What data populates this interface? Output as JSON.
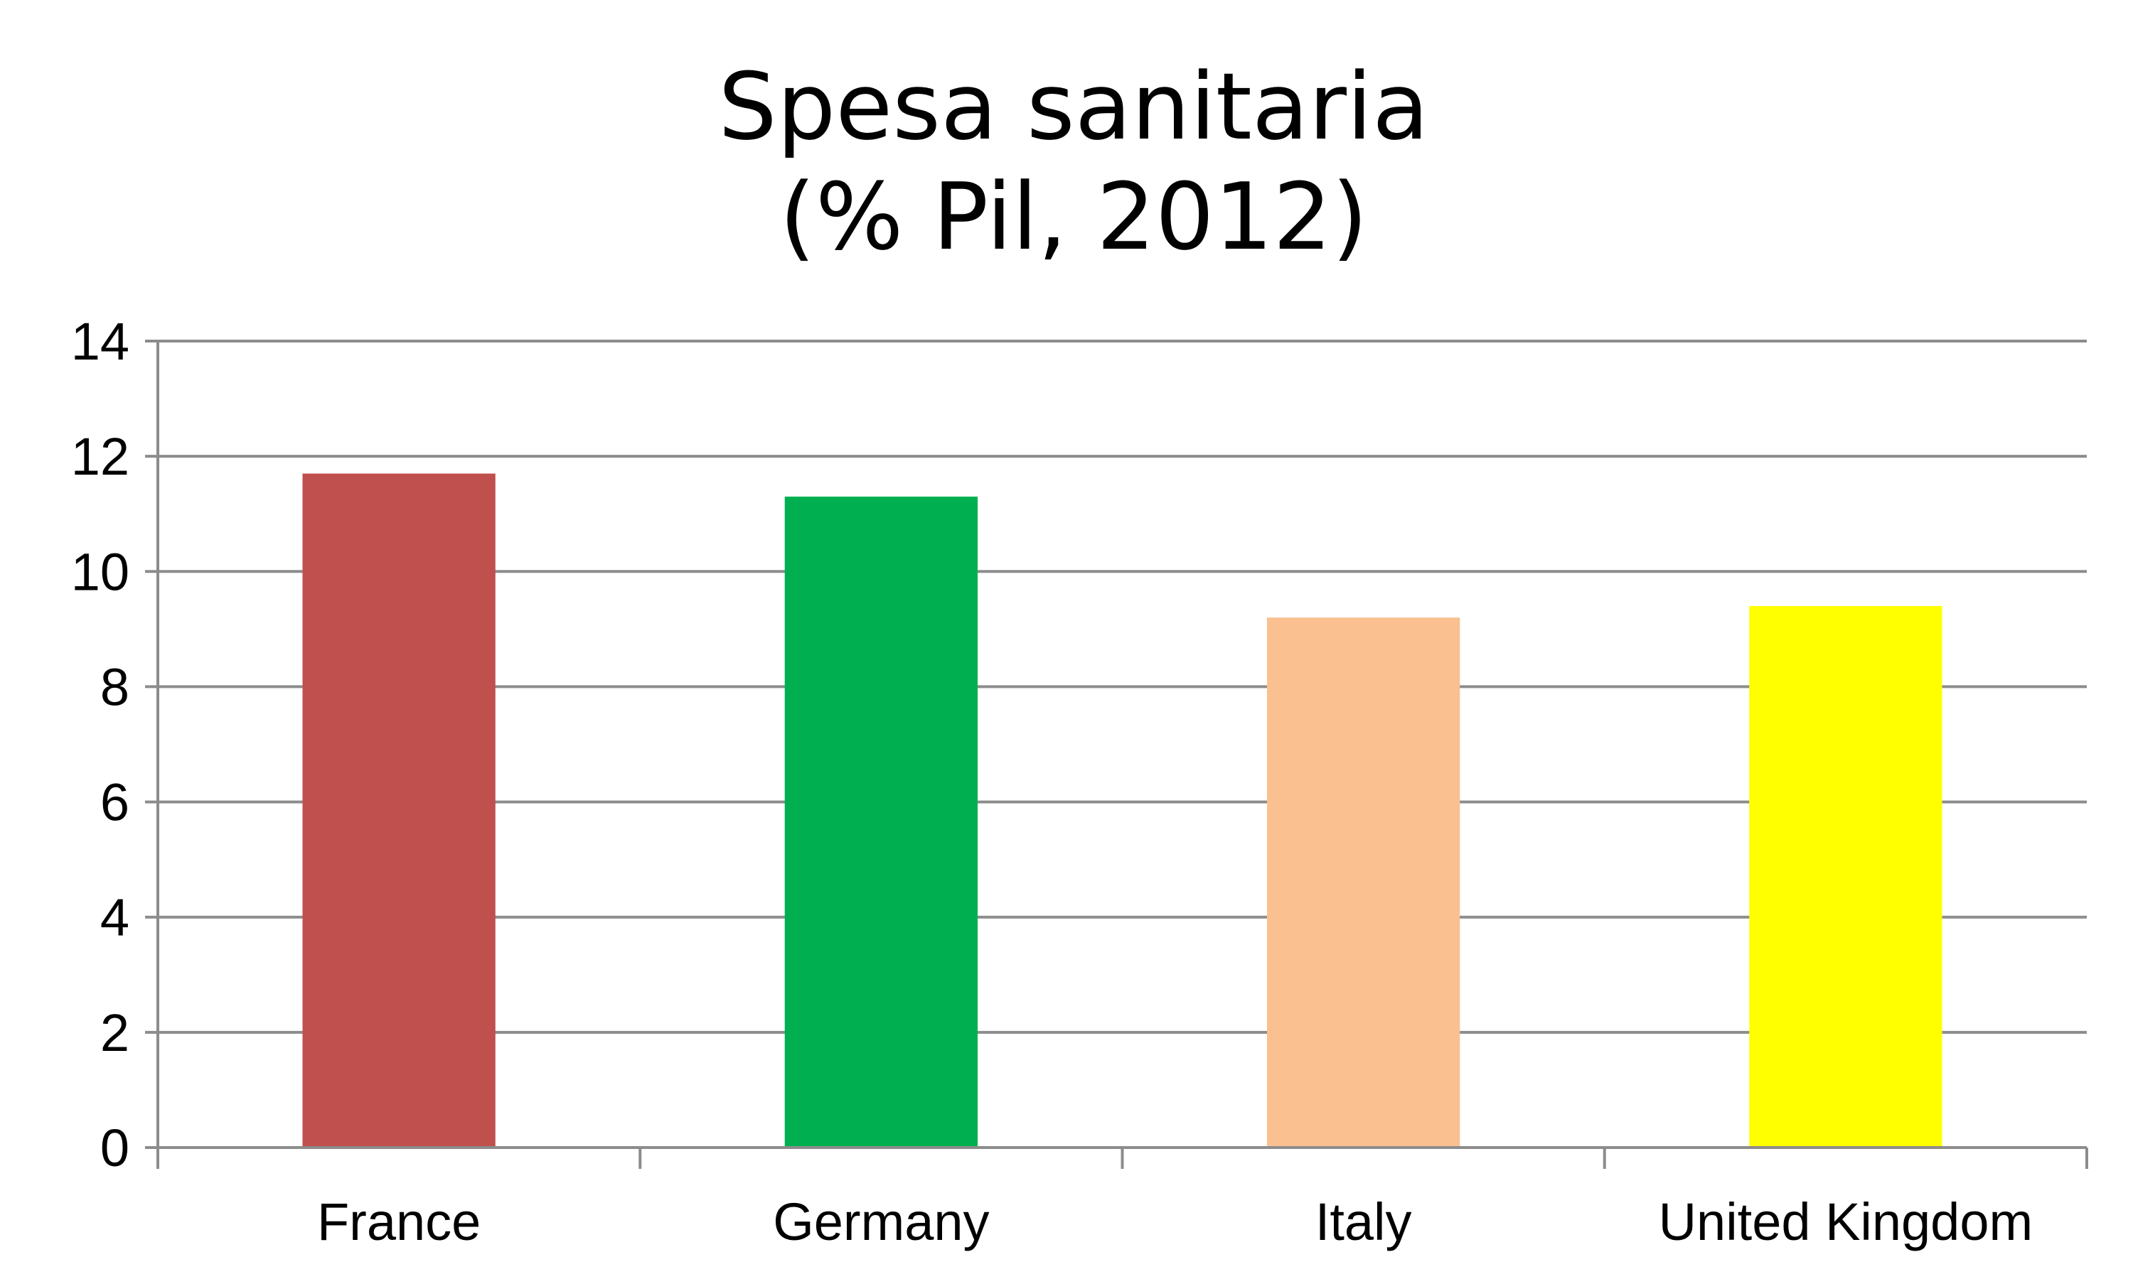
{
  "chart_data": {
    "type": "bar",
    "title": [
      "Spesa sanitaria",
      "(% Pil, 2012)"
    ],
    "xlabel": "",
    "ylabel": "",
    "categories": [
      "France",
      "Germany",
      "Italy",
      "United Kingdom"
    ],
    "values": [
      11.7,
      11.3,
      9.2,
      9.4
    ],
    "colors": [
      "#C0504D",
      "#00B050",
      "#FAC090",
      "#FFFF00"
    ],
    "ylim": [
      0,
      14
    ],
    "yticks": [
      "0",
      "2",
      "4",
      "6",
      "8",
      "10",
      "12",
      "14"
    ],
    "grid": true,
    "legend": "none"
  }
}
